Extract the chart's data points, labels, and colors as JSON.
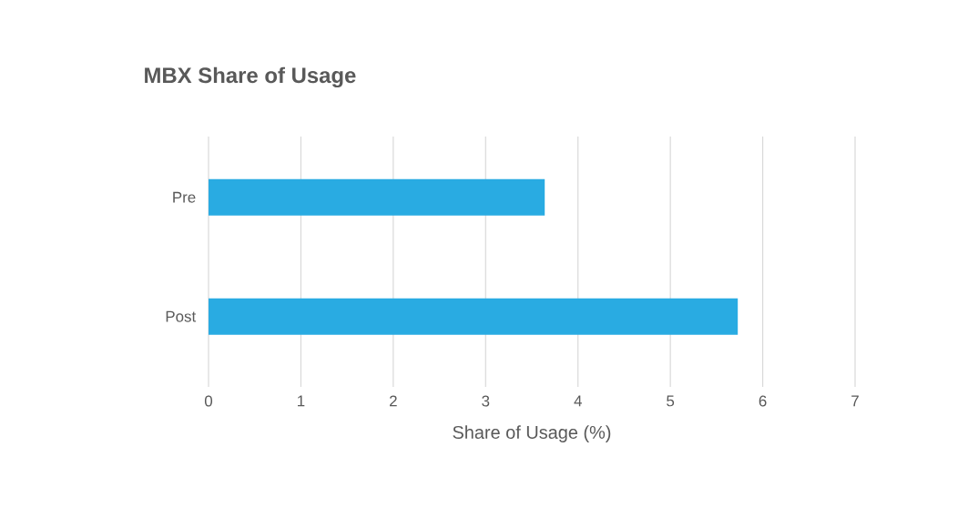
{
  "chart_data": {
    "type": "bar",
    "orientation": "horizontal",
    "title": "MBX Share of Usage",
    "xlabel": "Share of Usage (%)",
    "categories": [
      "Pre",
      "Post"
    ],
    "values": [
      3.64,
      5.73
    ],
    "color": "#29abe2",
    "xlim": [
      0,
      7
    ],
    "xticks": [
      0,
      1,
      2,
      3,
      4,
      5,
      6,
      7
    ],
    "grid": "x"
  }
}
